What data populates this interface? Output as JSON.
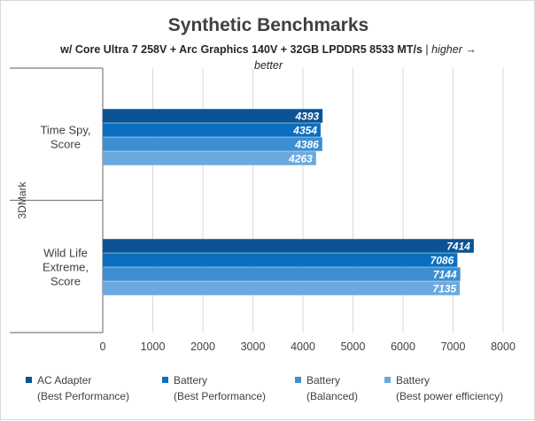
{
  "chart_data": {
    "type": "bar",
    "orientation": "horizontal",
    "title": "Synthetic Benchmarks",
    "subtitle": {
      "hardware": "w/ Core Ultra 7 258V + Arc Graphics 140V + 32GB LPDDR5 8533 MT/s",
      "separator": " | ",
      "note": "higher → better"
    },
    "group_label": "3DMark",
    "categories": [
      "Time Spy, Score",
      "Wild Life Extreme, Score"
    ],
    "category_lines": [
      [
        "Time Spy,",
        "Score"
      ],
      [
        "Wild Life",
        "Extreme,",
        "Score"
      ]
    ],
    "series": [
      {
        "name": "AC Adapter\n(Best Performance)",
        "color": "#0b5394",
        "values": [
          4393,
          7414
        ]
      },
      {
        "name": "Battery\n(Best Performance)",
        "color": "#0b6fc1",
        "values": [
          4354,
          7086
        ]
      },
      {
        "name": "Battery\n(Balanced)",
        "color": "#3d8fd1",
        "values": [
          4386,
          7144
        ]
      },
      {
        "name": "Battery\n(Best power efficiency)",
        "color": "#6aa9e0",
        "values": [
          4263,
          7135
        ]
      }
    ],
    "xlim": [
      0,
      8000
    ],
    "xticks": [
      "0",
      "1000",
      "2000",
      "3000",
      "4000",
      "5000",
      "6000",
      "7000",
      "8000"
    ],
    "grid": true,
    "legend_position": "bottom"
  }
}
